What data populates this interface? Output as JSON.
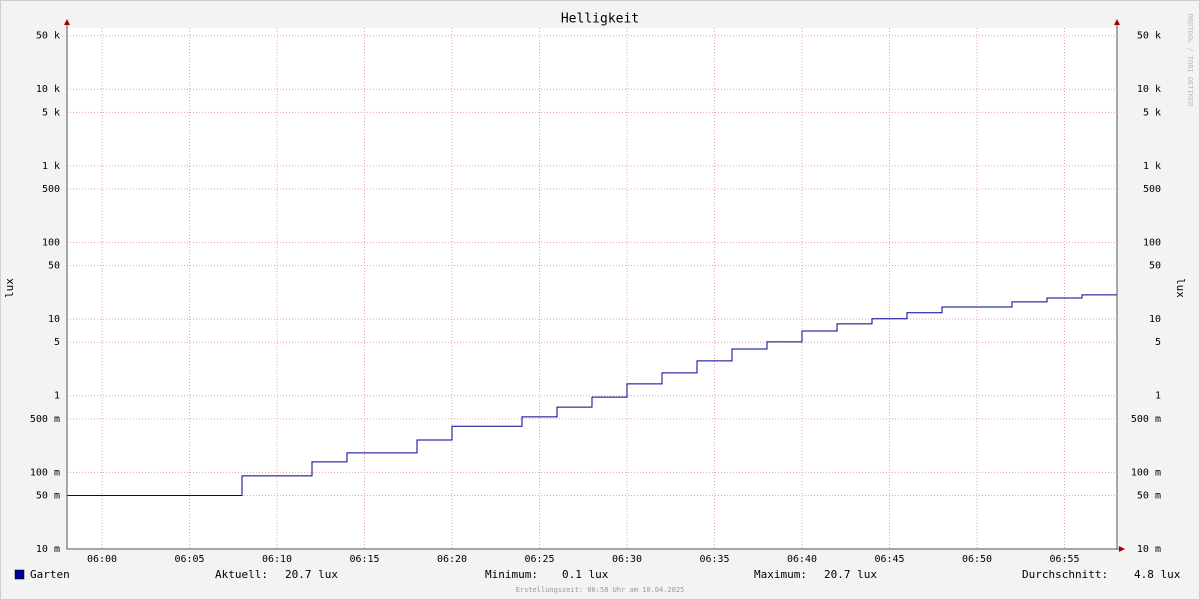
{
  "chart_data": {
    "type": "line",
    "title": "Helligkeit",
    "y_label": "lux",
    "y2_label": "lux",
    "watermark": "RRDTOOL / TOBI OETIKER",
    "footer": "Erstellungszeit: 06:58 Uhr am 10.04.2025",
    "log_y": true,
    "grid": true,
    "step": true,
    "xlim": [
      358,
      418
    ],
    "xticks": [
      {
        "value": 360,
        "label": "06:00"
      },
      {
        "value": 365,
        "label": "06:05"
      },
      {
        "value": 370,
        "label": "06:10"
      },
      {
        "value": 375,
        "label": "06:15"
      },
      {
        "value": 380,
        "label": "06:20"
      },
      {
        "value": 385,
        "label": "06:25"
      },
      {
        "value": 390,
        "label": "06:30"
      },
      {
        "value": 395,
        "label": "06:35"
      },
      {
        "value": 400,
        "label": "06:40"
      },
      {
        "value": 405,
        "label": "06:45"
      },
      {
        "value": 410,
        "label": "06:50"
      },
      {
        "value": 415,
        "label": "06:55"
      }
    ],
    "ylim": [
      0.01,
      63000
    ],
    "yticks": [
      {
        "value": 0.01,
        "label": "10 m"
      },
      {
        "value": 0.05,
        "label": "50 m"
      },
      {
        "value": 0.1,
        "label": "100 m"
      },
      {
        "value": 0.5,
        "label": "500 m"
      },
      1,
      5,
      10,
      50,
      100,
      500,
      {
        "value": 1000,
        "label": "1 k"
      },
      {
        "value": 5000,
        "label": "5 k"
      },
      {
        "value": 10000,
        "label": "10 k"
      },
      {
        "value": 50000,
        "label": "50 k"
      }
    ],
    "x": [
      358,
      368,
      372,
      374,
      378,
      380,
      384,
      386,
      388,
      390,
      392,
      394,
      396,
      398,
      400,
      402,
      404,
      406,
      408,
      412,
      414,
      416
    ],
    "series": [
      {
        "name": "Garten",
        "color": "#000094",
        "values": [
          0.05,
          0.09,
          0.137,
          0.18,
          0.265,
          0.4,
          0.53,
          0.71,
          0.96,
          1.43,
          1.99,
          2.85,
          4.08,
          5.04,
          7.0,
          8.66,
          10.1,
          12.1,
          14.4,
          16.8,
          18.9,
          20.7
        ]
      }
    ],
    "stats": [
      {
        "label": "Aktuell:",
        "value": "20.7 lux"
      },
      {
        "label": "Minimum:",
        "value": "0.1 lux"
      },
      {
        "label": "Maximum:",
        "value": "20.7 lux"
      },
      {
        "label": "Durchschnitt:",
        "value": "4.8 lux"
      }
    ]
  }
}
